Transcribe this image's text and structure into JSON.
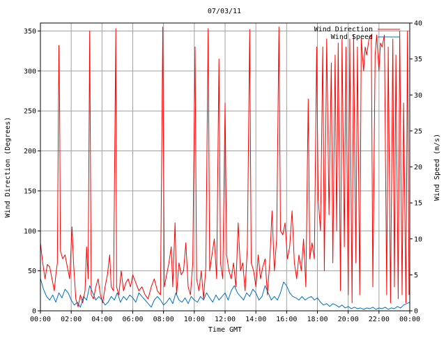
{
  "chart_data": {
    "type": "line",
    "title": "07/03/11",
    "xlabel": "Time GMT",
    "ylabel": "Wind Direction (Degrees)",
    "y2label": "Wind Speed (m/s)",
    "xlim": [
      0,
      24
    ],
    "ylim": [
      0,
      360
    ],
    "y2lim": [
      0,
      40
    ],
    "x_ticks": [
      "00:00",
      "02:00",
      "04:00",
      "06:00",
      "08:00",
      "10:00",
      "12:00",
      "14:00",
      "16:00",
      "18:00",
      "20:00",
      "22:00",
      "00:00"
    ],
    "y_ticks": [
      0,
      50,
      100,
      150,
      200,
      250,
      300,
      350
    ],
    "y2_ticks": [
      0,
      5,
      10,
      15,
      20,
      25,
      30,
      35,
      40
    ],
    "grid": true,
    "legend_position": "top-right",
    "series": [
      {
        "name": "Wind Direction",
        "axis": "left",
        "color": "#ff0000",
        "points": [
          [
            0,
            85
          ],
          [
            0.15,
            60
          ],
          [
            0.3,
            40
          ],
          [
            0.45,
            58
          ],
          [
            0.6,
            55
          ],
          [
            0.75,
            40
          ],
          [
            0.9,
            25
          ],
          [
            1.0,
            45
          ],
          [
            1.1,
            60
          ],
          [
            1.2,
            332
          ],
          [
            1.25,
            250
          ],
          [
            1.3,
            75
          ],
          [
            1.45,
            65
          ],
          [
            1.6,
            70
          ],
          [
            1.75,
            55
          ],
          [
            1.9,
            40
          ],
          [
            2.05,
            105
          ],
          [
            2.15,
            60
          ],
          [
            2.3,
            15
          ],
          [
            2.45,
            5
          ],
          [
            2.6,
            20
          ],
          [
            2.75,
            10
          ],
          [
            2.9,
            25
          ],
          [
            3.0,
            80
          ],
          [
            3.1,
            40
          ],
          [
            3.2,
            350
          ],
          [
            3.3,
            20
          ],
          [
            3.45,
            15
          ],
          [
            3.6,
            30
          ],
          [
            3.75,
            40
          ],
          [
            3.9,
            20
          ],
          [
            4.05,
            10
          ],
          [
            4.2,
            30
          ],
          [
            4.35,
            45
          ],
          [
            4.5,
            70
          ],
          [
            4.6,
            30
          ],
          [
            4.75,
            25
          ],
          [
            4.9,
            353
          ],
          [
            4.95,
            30
          ],
          [
            5.1,
            20
          ],
          [
            5.25,
            50
          ],
          [
            5.4,
            25
          ],
          [
            5.55,
            35
          ],
          [
            5.7,
            40
          ],
          [
            5.85,
            30
          ],
          [
            6.0,
            45
          ],
          [
            6.2,
            35
          ],
          [
            6.4,
            25
          ],
          [
            6.6,
            30
          ],
          [
            6.8,
            20
          ],
          [
            7.0,
            15
          ],
          [
            7.2,
            30
          ],
          [
            7.4,
            40
          ],
          [
            7.6,
            25
          ],
          [
            7.8,
            20
          ],
          [
            7.95,
            355
          ],
          [
            8.05,
            30
          ],
          [
            8.2,
            45
          ],
          [
            8.35,
            60
          ],
          [
            8.5,
            80
          ],
          [
            8.6,
            30
          ],
          [
            8.75,
            110
          ],
          [
            8.85,
            20
          ],
          [
            9.0,
            60
          ],
          [
            9.15,
            45
          ],
          [
            9.3,
            50
          ],
          [
            9.45,
            85
          ],
          [
            9.6,
            30
          ],
          [
            9.75,
            20
          ],
          [
            9.9,
            60
          ],
          [
            10.05,
            330
          ],
          [
            10.15,
            40
          ],
          [
            10.3,
            25
          ],
          [
            10.45,
            50
          ],
          [
            10.6,
            15
          ],
          [
            10.75,
            55
          ],
          [
            10.9,
            353
          ],
          [
            11.0,
            50
          ],
          [
            11.15,
            70
          ],
          [
            11.3,
            90
          ],
          [
            11.45,
            40
          ],
          [
            11.6,
            315
          ],
          [
            11.7,
            60
          ],
          [
            11.85,
            40
          ],
          [
            12.0,
            260
          ],
          [
            12.1,
            70
          ],
          [
            12.25,
            50
          ],
          [
            12.4,
            40
          ],
          [
            12.55,
            60
          ],
          [
            12.7,
            30
          ],
          [
            12.85,
            110
          ],
          [
            13.0,
            50
          ],
          [
            13.15,
            60
          ],
          [
            13.3,
            25
          ],
          [
            13.45,
            80
          ],
          [
            13.6,
            352
          ],
          [
            13.7,
            60
          ],
          [
            13.85,
            50
          ],
          [
            14.0,
            30
          ],
          [
            14.15,
            70
          ],
          [
            14.3,
            40
          ],
          [
            14.45,
            55
          ],
          [
            14.6,
            65
          ],
          [
            14.75,
            20
          ],
          [
            14.9,
            60
          ],
          [
            15.05,
            125
          ],
          [
            15.2,
            50
          ],
          [
            15.35,
            90
          ],
          [
            15.5,
            355
          ],
          [
            15.6,
            100
          ],
          [
            15.75,
            95
          ],
          [
            15.9,
            110
          ],
          [
            16.05,
            65
          ],
          [
            16.2,
            80
          ],
          [
            16.35,
            125
          ],
          [
            16.5,
            60
          ],
          [
            16.65,
            40
          ],
          [
            16.8,
            70
          ],
          [
            16.95,
            50
          ],
          [
            17.1,
            90
          ],
          [
            17.25,
            30
          ],
          [
            17.4,
            265
          ],
          [
            17.5,
            65
          ],
          [
            17.65,
            85
          ],
          [
            17.8,
            65
          ],
          [
            17.95,
            330
          ],
          [
            18.05,
            140
          ],
          [
            18.2,
            100
          ],
          [
            18.35,
            330
          ],
          [
            18.45,
            50
          ],
          [
            18.6,
            340
          ],
          [
            18.75,
            120
          ],
          [
            18.9,
            310
          ],
          [
            19.0,
            60
          ],
          [
            19.15,
            320
          ],
          [
            19.25,
            100
          ],
          [
            19.35,
            335
          ],
          [
            19.5,
            25
          ],
          [
            19.6,
            340
          ],
          [
            19.75,
            80
          ],
          [
            19.85,
            330
          ],
          [
            20.0,
            20
          ],
          [
            20.1,
            340
          ],
          [
            20.25,
            10
          ],
          [
            20.35,
            345
          ],
          [
            20.5,
            60
          ],
          [
            20.6,
            330
          ],
          [
            20.75,
            20
          ],
          [
            20.85,
            340
          ],
          [
            21.0,
            300
          ],
          [
            21.1,
            330
          ],
          [
            21.2,
            320
          ],
          [
            21.35,
            340
          ],
          [
            21.5,
            345
          ],
          [
            21.6,
            30
          ],
          [
            21.75,
            320
          ],
          [
            21.85,
            345
          ],
          [
            22.0,
            300
          ],
          [
            22.1,
            335
          ],
          [
            22.2,
            330
          ],
          [
            22.35,
            345
          ],
          [
            22.5,
            20
          ],
          [
            22.6,
            330
          ],
          [
            22.75,
            10
          ],
          [
            22.9,
            340
          ],
          [
            23.0,
            30
          ],
          [
            23.1,
            320
          ],
          [
            23.25,
            15
          ],
          [
            23.35,
            350
          ],
          [
            23.5,
            20
          ],
          [
            23.6,
            260
          ],
          [
            23.75,
            10
          ],
          [
            23.85,
            350
          ],
          [
            23.95,
            20
          ]
        ]
      },
      {
        "name": "Wind Speed",
        "axis": "right",
        "color": "#0070c0",
        "points": [
          [
            0,
            4.5
          ],
          [
            0.2,
            3.0
          ],
          [
            0.4,
            2.0
          ],
          [
            0.6,
            1.5
          ],
          [
            0.8,
            2.2
          ],
          [
            1.0,
            1.2
          ],
          [
            1.2,
            2.5
          ],
          [
            1.4,
            1.8
          ],
          [
            1.6,
            3.0
          ],
          [
            1.8,
            2.5
          ],
          [
            2.0,
            1.5
          ],
          [
            2.2,
            0.8
          ],
          [
            2.4,
            1.2
          ],
          [
            2.6,
            0.5
          ],
          [
            2.8,
            2.0
          ],
          [
            3.0,
            1.5
          ],
          [
            3.2,
            3.5
          ],
          [
            3.4,
            2.5
          ],
          [
            3.6,
            1.5
          ],
          [
            3.8,
            2.0
          ],
          [
            4.0,
            1.5
          ],
          [
            4.2,
            0.8
          ],
          [
            4.4,
            1.2
          ],
          [
            4.6,
            2.0
          ],
          [
            4.8,
            1.5
          ],
          [
            5.0,
            2.5
          ],
          [
            5.2,
            1.2
          ],
          [
            5.4,
            2.0
          ],
          [
            5.6,
            1.5
          ],
          [
            5.8,
            2.2
          ],
          [
            6.0,
            1.8
          ],
          [
            6.2,
            1.2
          ],
          [
            6.4,
            2.5
          ],
          [
            6.6,
            2.0
          ],
          [
            6.8,
            1.5
          ],
          [
            7.0,
            1.0
          ],
          [
            7.2,
            0.5
          ],
          [
            7.4,
            1.5
          ],
          [
            7.6,
            2.0
          ],
          [
            7.8,
            1.5
          ],
          [
            8.0,
            0.8
          ],
          [
            8.2,
            1.2
          ],
          [
            8.4,
            1.8
          ],
          [
            8.6,
            1.0
          ],
          [
            8.8,
            2.5
          ],
          [
            9.0,
            1.5
          ],
          [
            9.2,
            1.2
          ],
          [
            9.4,
            1.8
          ],
          [
            9.6,
            1.0
          ],
          [
            9.8,
            2.0
          ],
          [
            10.0,
            1.5
          ],
          [
            10.2,
            1.2
          ],
          [
            10.4,
            2.0
          ],
          [
            10.6,
            1.5
          ],
          [
            10.8,
            2.5
          ],
          [
            11.0,
            1.8
          ],
          [
            11.2,
            1.2
          ],
          [
            11.4,
            2.2
          ],
          [
            11.6,
            1.5
          ],
          [
            11.8,
            2.0
          ],
          [
            12.0,
            2.5
          ],
          [
            12.2,
            1.5
          ],
          [
            12.4,
            2.8
          ],
          [
            12.6,
            3.5
          ],
          [
            12.8,
            2.5
          ],
          [
            13.0,
            2.0
          ],
          [
            13.2,
            1.5
          ],
          [
            13.4,
            2.5
          ],
          [
            13.6,
            2.0
          ],
          [
            13.8,
            3.0
          ],
          [
            14.0,
            2.5
          ],
          [
            14.2,
            1.5
          ],
          [
            14.4,
            2.0
          ],
          [
            14.6,
            3.5
          ],
          [
            14.8,
            2.5
          ],
          [
            15.0,
            1.5
          ],
          [
            15.2,
            2.0
          ],
          [
            15.4,
            1.5
          ],
          [
            15.6,
            2.5
          ],
          [
            15.8,
            4.0
          ],
          [
            16.0,
            3.5
          ],
          [
            16.2,
            2.5
          ],
          [
            16.4,
            2.0
          ],
          [
            16.6,
            1.8
          ],
          [
            16.8,
            1.5
          ],
          [
            17.0,
            2.0
          ],
          [
            17.2,
            1.5
          ],
          [
            17.4,
            1.8
          ],
          [
            17.6,
            2.0
          ],
          [
            17.8,
            1.5
          ],
          [
            18.0,
            1.8
          ],
          [
            18.2,
            1.2
          ],
          [
            18.4,
            0.8
          ],
          [
            18.6,
            1.0
          ],
          [
            18.8,
            0.6
          ],
          [
            19.0,
            1.0
          ],
          [
            19.2,
            0.8
          ],
          [
            19.4,
            0.5
          ],
          [
            19.6,
            0.8
          ],
          [
            19.8,
            0.4
          ],
          [
            20.0,
            0.6
          ],
          [
            20.2,
            0.3
          ],
          [
            20.4,
            0.5
          ],
          [
            20.6,
            0.3
          ],
          [
            20.8,
            0.4
          ],
          [
            21.0,
            0.2
          ],
          [
            21.2,
            0.4
          ],
          [
            21.4,
            0.3
          ],
          [
            21.6,
            0.5
          ],
          [
            21.8,
            0.2
          ],
          [
            22.0,
            0.4
          ],
          [
            22.2,
            0.3
          ],
          [
            22.4,
            0.5
          ],
          [
            22.6,
            0.2
          ],
          [
            22.8,
            0.4
          ],
          [
            23.0,
            0.3
          ],
          [
            23.2,
            0.6
          ],
          [
            23.4,
            0.4
          ],
          [
            23.6,
            0.8
          ],
          [
            23.8,
            1.0
          ],
          [
            24.0,
            1.2
          ]
        ]
      }
    ]
  }
}
